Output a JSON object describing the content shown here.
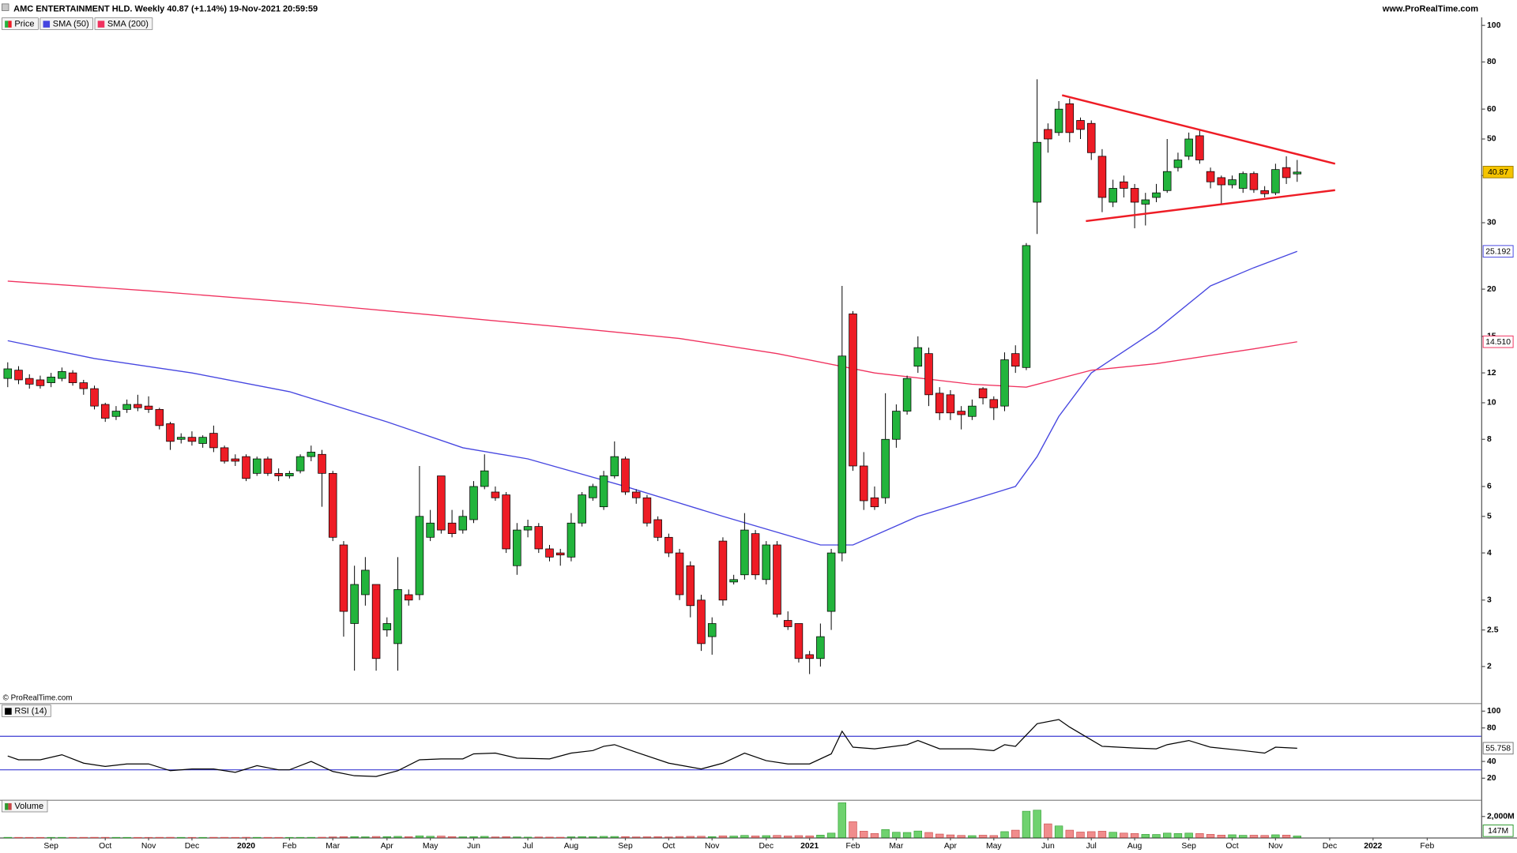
{
  "chart_data": [
    {
      "type": "candlestick",
      "title": "AMC ENTERTAINMENT HLD. Weekly 40.87 (+1.14%) 19-Nov-2021 20:59:59",
      "source": "www.ProRealTime.com",
      "copyright": "© ProRealTime.com",
      "name": "Price",
      "up_color": "#22b43c",
      "down_color": "#ee1c25",
      "log_scale": true,
      "ylim": [
        1.6,
        105
      ],
      "yticks": [
        2,
        2.5,
        3,
        4,
        5,
        6,
        8,
        10,
        12,
        15,
        20,
        30,
        40,
        50,
        60,
        80,
        100
      ],
      "categories": [
        null,
        null,
        null,
        null,
        "Sep",
        null,
        null,
        null,
        null,
        "Oct",
        null,
        null,
        null,
        "Nov",
        null,
        null,
        null,
        "Dec",
        null,
        null,
        null,
        null,
        "2020",
        null,
        null,
        null,
        "Feb",
        null,
        null,
        null,
        "Mar",
        null,
        null,
        null,
        null,
        "Apr",
        null,
        null,
        null,
        "May",
        null,
        null,
        null,
        "Jun",
        null,
        null,
        null,
        null,
        "Jul",
        null,
        null,
        null,
        "Aug",
        null,
        null,
        null,
        null,
        "Sep",
        null,
        null,
        null,
        "Oct",
        null,
        null,
        null,
        "Nov",
        null,
        null,
        null,
        null,
        "Dec",
        null,
        null,
        null,
        "2021",
        null,
        null,
        null,
        "Feb",
        null,
        null,
        null,
        "Mar",
        null,
        null,
        null,
        null,
        "Apr",
        null,
        null,
        null,
        "May",
        null,
        null,
        null,
        null,
        "Jun",
        null,
        null,
        null,
        "Jul",
        null,
        null,
        null,
        "Aug",
        null,
        null,
        null,
        null,
        "Sep",
        null,
        null,
        null,
        "Oct",
        null,
        null,
        null,
        "Nov",
        null,
        null,
        null,
        null,
        "Dec",
        null,
        null,
        null,
        "2022",
        null,
        null,
        null,
        null,
        "Feb"
      ],
      "open": [
        11.6,
        12.2,
        11.6,
        11.5,
        11.3,
        11.6,
        12.0,
        11.3,
        10.9,
        9.9,
        9.2,
        9.6,
        9.9,
        9.8,
        9.6,
        8.8,
        8.0,
        8.1,
        7.8,
        8.3,
        7.6,
        7.1,
        7.2,
        6.5,
        7.1,
        6.5,
        6.4,
        6.6,
        7.2,
        7.3,
        6.5,
        4.2,
        2.6,
        3.1,
        3.3,
        2.5,
        2.3,
        3.1,
        3.1,
        4.4,
        6.4,
        4.8,
        4.6,
        4.9,
        6.0,
        5.8,
        5.7,
        3.7,
        4.6,
        4.7,
        4.1,
        4.0,
        3.9,
        4.8,
        5.6,
        5.3,
        6.4,
        7.1,
        5.8,
        5.6,
        4.9,
        4.4,
        4.0,
        3.7,
        3.0,
        2.4,
        4.3,
        3.35,
        3.5,
        4.5,
        3.4,
        4.2,
        2.65,
        2.6,
        2.15,
        2.1,
        2.8,
        4.0,
        17.2,
        6.8,
        5.6,
        5.6,
        8.0,
        9.5,
        12.5,
        13.5,
        10.6,
        10.5,
        9.5,
        9.2,
        10.9,
        10.2,
        9.8,
        13.5,
        12.4,
        34.0,
        53.0,
        52.0,
        62.0,
        56.0,
        55.0,
        45.0,
        34.0,
        38.5,
        37.0,
        33.6,
        35.0,
        36.5,
        42.0,
        45.0,
        51.0,
        41.0,
        39.5,
        37.8,
        37.0,
        40.5,
        36.5,
        36.0,
        42.0,
        40.4,
        null,
        null,
        null,
        null,
        null,
        null,
        null,
        null,
        null,
        null,
        null,
        null
      ],
      "high": [
        12.8,
        12.5,
        11.9,
        11.8,
        12.0,
        12.4,
        12.2,
        11.5,
        11.1,
        10.0,
        9.8,
        10.2,
        10.5,
        10.4,
        9.7,
        8.9,
        8.3,
        8.4,
        8.2,
        8.7,
        7.7,
        7.3,
        7.3,
        7.2,
        7.2,
        6.7,
        6.6,
        7.3,
        7.7,
        7.5,
        6.6,
        4.3,
        3.7,
        3.9,
        3.3,
        2.7,
        3.9,
        3.2,
        6.8,
        5.2,
        6.4,
        5.2,
        5.2,
        6.2,
        7.3,
        6.0,
        5.8,
        4.8,
        4.9,
        4.8,
        4.2,
        4.1,
        5.1,
        5.8,
        6.1,
        6.6,
        7.9,
        7.2,
        5.9,
        5.7,
        5.0,
        4.5,
        4.1,
        3.8,
        3.1,
        2.7,
        4.4,
        3.5,
        5.1,
        4.6,
        4.3,
        4.3,
        2.8,
        2.6,
        2.2,
        2.6,
        4.1,
        20.4,
        17.5,
        7.4,
        6.0,
        10.6,
        9.9,
        11.8,
        15.0,
        14.0,
        11.0,
        10.8,
        9.8,
        10.2,
        11.0,
        10.4,
        13.6,
        14.2,
        26.5,
        72.0,
        55.0,
        63.0,
        64.0,
        57.0,
        56.0,
        47.0,
        39.0,
        40.0,
        38.0,
        36.0,
        38.0,
        50.0,
        46.0,
        52.0,
        53.0,
        42.0,
        40.0,
        40.0,
        41.0,
        41.0,
        37.5,
        43.0,
        45.0,
        44.0,
        null,
        null,
        null,
        null,
        null,
        null,
        null,
        null,
        null,
        null,
        null,
        null
      ],
      "low": [
        11.0,
        11.2,
        10.9,
        10.9,
        11.0,
        11.4,
        11.1,
        10.5,
        9.6,
        8.9,
        9.0,
        9.4,
        9.5,
        9.4,
        8.5,
        7.5,
        7.8,
        7.7,
        7.6,
        7.4,
        6.9,
        6.8,
        6.2,
        6.4,
        6.4,
        6.2,
        6.3,
        6.5,
        7.0,
        5.3,
        4.3,
        2.4,
        1.95,
        2.9,
        1.95,
        2.4,
        1.95,
        2.9,
        3.0,
        4.3,
        4.5,
        4.4,
        4.5,
        4.8,
        5.9,
        5.5,
        4.0,
        3.5,
        4.4,
        4.0,
        3.8,
        3.7,
        3.8,
        4.7,
        5.5,
        5.2,
        6.3,
        5.7,
        5.4,
        4.7,
        4.3,
        3.9,
        3.0,
        2.7,
        2.2,
        2.15,
        2.9,
        3.3,
        3.4,
        3.4,
        3.3,
        2.7,
        2.5,
        2.05,
        1.91,
        2.0,
        2.5,
        3.8,
        6.6,
        5.2,
        5.2,
        5.4,
        7.6,
        9.3,
        12.0,
        9.8,
        9.0,
        9.0,
        8.5,
        9.0,
        9.9,
        9.0,
        9.5,
        12.0,
        12.2,
        28.0,
        46.0,
        51.0,
        49.0,
        50.0,
        44.0,
        32.0,
        33.0,
        35.0,
        29.0,
        29.5,
        34.0,
        36.0,
        41.0,
        44.0,
        43.0,
        37.0,
        33.5,
        37.0,
        36.0,
        36.0,
        35.0,
        35.5,
        38.0,
        38.5,
        null,
        null,
        null,
        null,
        null,
        null,
        null,
        null,
        null,
        null,
        null,
        null
      ],
      "close": [
        12.3,
        11.5,
        11.2,
        11.1,
        11.7,
        12.1,
        11.3,
        10.9,
        9.8,
        9.1,
        9.5,
        9.9,
        9.7,
        9.6,
        8.7,
        7.9,
        8.1,
        7.9,
        8.1,
        7.6,
        7.0,
        7.0,
        6.3,
        7.1,
        6.5,
        6.4,
        6.5,
        7.2,
        7.4,
        6.5,
        4.4,
        2.8,
        3.3,
        3.6,
        2.1,
        2.6,
        3.2,
        3.0,
        5.0,
        4.8,
        4.6,
        4.5,
        5.0,
        6.0,
        6.6,
        5.6,
        4.1,
        4.6,
        4.7,
        4.1,
        3.9,
        3.95,
        4.8,
        5.7,
        6.0,
        6.4,
        7.2,
        5.8,
        5.6,
        4.8,
        4.4,
        4.0,
        3.1,
        2.9,
        2.3,
        2.6,
        3.0,
        3.4,
        4.6,
        3.5,
        4.2,
        2.75,
        2.55,
        2.1,
        2.1,
        2.4,
        4.0,
        13.3,
        6.8,
        5.5,
        5.3,
        8.0,
        9.5,
        11.6,
        14.0,
        10.5,
        9.4,
        9.4,
        9.3,
        9.8,
        10.3,
        9.7,
        13.0,
        12.5,
        26.1,
        49.0,
        50.0,
        60.0,
        52.0,
        53.0,
        46.0,
        35.0,
        37.0,
        37.0,
        34.0,
        34.5,
        36.0,
        41.0,
        44.0,
        50.0,
        44.0,
        38.5,
        37.8,
        39.0,
        40.5,
        36.7,
        35.8,
        41.5,
        39.5,
        40.87,
        null,
        null,
        null,
        null,
        null,
        null,
        null,
        null,
        null,
        null,
        null,
        null
      ],
      "close_label_color": "#f5c400",
      "series": [
        {
          "name": "SMA (50)",
          "color": "#4646e0",
          "x": [
            0,
            8,
            17,
            26,
            35,
            42,
            48,
            57,
            66,
            75,
            78,
            84,
            93,
            95,
            97,
            100,
            106,
            111,
            115,
            119
          ],
          "values": [
            14.6,
            13.1,
            12.0,
            10.7,
            8.9,
            7.6,
            7.1,
            6.0,
            5.0,
            4.2,
            4.2,
            5.0,
            6.0,
            7.2,
            9.2,
            12.0,
            15.6,
            20.4,
            22.8,
            25.192
          ]
        },
        {
          "name": "SMA (200)",
          "color": "#f0325f",
          "x": [
            0,
            13,
            26,
            39,
            53,
            62,
            71,
            80,
            89,
            94,
            100,
            106,
            115,
            119
          ],
          "values": [
            21.0,
            19.8,
            18.5,
            17.1,
            15.7,
            14.8,
            13.5,
            12.0,
            11.2,
            11.0,
            12.2,
            12.7,
            13.9,
            14.51
          ],
          "value_labels": [
            null,
            null,
            null,
            null,
            null,
            null,
            null,
            null,
            null,
            null,
            null,
            null,
            null,
            "14.510"
          ]
        }
      ],
      "trendlines": [
        {
          "color": "#ee1c25",
          "x": [
            97.3,
            122.5
          ],
          "values": [
            65.3,
            43.0
          ]
        },
        {
          "color": "#ee1c25",
          "x": [
            99.5,
            122.5
          ],
          "values": [
            30.3,
            36.6
          ]
        }
      ]
    },
    {
      "type": "line",
      "name": "RSI (14)",
      "color": "#000000",
      "ylim": [
        0,
        105
      ],
      "yticks": [
        20,
        40,
        80,
        100
      ],
      "levels": [
        70,
        30
      ],
      "level_color": "#3c3cd2",
      "x": [
        0,
        1,
        3,
        5,
        7,
        9,
        11,
        13,
        15,
        17,
        19,
        21,
        23,
        25,
        26,
        28,
        30,
        32,
        34,
        36,
        38,
        40,
        42,
        43,
        45,
        47,
        50,
        52,
        54,
        55,
        56,
        58,
        61,
        64,
        66,
        68,
        70,
        72,
        74,
        76,
        77,
        78,
        80,
        83,
        84,
        86,
        89,
        91,
        92,
        93,
        95,
        97,
        98,
        101,
        104,
        106,
        107,
        109,
        111,
        114,
        116,
        117,
        119
      ],
      "values": [
        46.5,
        42,
        42,
        48,
        38,
        34,
        37,
        37,
        29,
        31,
        31,
        27,
        35,
        30,
        30,
        40,
        28,
        23,
        22,
        29,
        42,
        43,
        43,
        49,
        50,
        44,
        43,
        50,
        53,
        58,
        60,
        51,
        38,
        31,
        38,
        50,
        41,
        37,
        37,
        49,
        76,
        57,
        55,
        60,
        65,
        55,
        55,
        53,
        60,
        58,
        85,
        90,
        81,
        58,
        56,
        55,
        60,
        65,
        57,
        53,
        50,
        57,
        55.758
      ]
    },
    {
      "type": "bar",
      "name": "Volume",
      "up_color": "#6fd26f",
      "down_color": "#f08c8c",
      "up_edge": "#2e9a2e",
      "down_edge": "#c84646",
      "ylim": [
        0,
        3400
      ],
      "yticks": [
        {
          "value": 2000,
          "label": "2,000M"
        }
      ],
      "values": [
        20,
        18,
        16,
        15,
        17,
        18,
        16,
        19,
        22,
        20,
        18,
        16,
        15,
        17,
        21,
        24,
        18,
        16,
        15,
        22,
        20,
        17,
        25,
        19,
        18,
        17,
        16,
        18,
        20,
        30,
        60,
        80,
        90,
        70,
        100,
        90,
        110,
        80,
        160,
        120,
        140,
        90,
        70,
        90,
        110,
        60,
        80,
        60,
        40,
        50,
        40,
        30,
        70,
        90,
        80,
        110,
        100,
        90,
        60,
        70,
        80,
        60,
        100,
        110,
        120,
        90,
        160,
        140,
        200,
        150,
        180,
        200,
        150,
        180,
        160,
        230,
        420,
        3300,
        1500,
        600,
        380,
        760,
        500,
        480,
        620,
        480,
        330,
        250,
        200,
        180,
        220,
        190,
        560,
        700,
        2500,
        2600,
        1300,
        1100,
        700,
        520,
        560,
        600,
        500,
        420,
        380,
        300,
        290,
        420,
        380,
        420,
        380,
        300,
        230,
        260,
        210,
        220,
        200,
        260,
        230,
        147,
        null,
        null,
        null,
        null,
        null,
        null,
        null,
        null,
        null,
        null,
        null,
        null
      ],
      "value_labels": [
        null,
        null,
        null,
        null,
        null,
        null,
        null,
        null,
        null,
        null,
        null,
        null,
        null,
        null,
        null,
        null,
        null,
        null,
        null,
        null,
        null,
        null,
        null,
        null,
        null,
        null,
        null,
        null,
        null,
        null,
        null,
        null,
        null,
        null,
        null,
        null,
        null,
        null,
        null,
        null,
        null,
        null,
        null,
        null,
        null,
        null,
        null,
        null,
        null,
        null,
        null,
        null,
        null,
        null,
        null,
        null,
        null,
        null,
        null,
        null,
        null,
        null,
        null,
        null,
        null,
        null,
        null,
        null,
        null,
        null,
        null,
        null,
        null,
        null,
        null,
        null,
        null,
        null,
        null,
        null,
        null,
        null,
        null,
        null,
        null,
        null,
        null,
        null,
        null,
        null,
        null,
        null,
        null,
        null,
        null,
        null,
        null,
        null,
        null,
        null,
        null,
        null,
        null,
        null,
        null,
        null,
        null,
        null,
        null,
        null,
        null,
        null,
        null,
        null,
        null,
        null,
        null,
        null,
        null,
        "147M",
        null,
        null,
        null,
        null,
        null,
        null,
        null,
        null,
        null,
        null,
        null,
        null
      ]
    }
  ]
}
